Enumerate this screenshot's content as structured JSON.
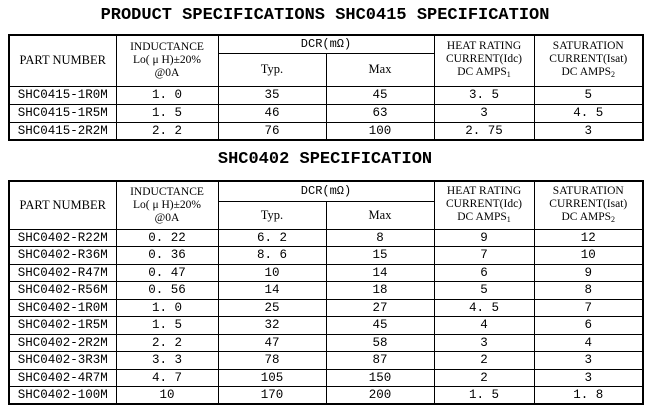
{
  "titles": {
    "main": "PRODUCT SPECIFICATIONS SHC0415 SPECIFICATION",
    "second": "SHC0402 SPECIFICATION"
  },
  "header": {
    "part_number": "PART NUMBER",
    "inductance": [
      "INDUCTANCE",
      "Lo( μ H)±20%",
      "@0A"
    ],
    "dcr": "DCR(mΩ)",
    "typ": "Typ.",
    "max": "Max",
    "heat_rating": [
      "HEAT RATING",
      "CURRENT(Idc)",
      "DC AMPS"
    ],
    "heat_sub": "1",
    "saturation": [
      "SATURATION",
      "CURRENT(Isat)",
      "DC AMPS"
    ],
    "saturation_sub": "2"
  },
  "shc0415_table": {
    "rows": [
      [
        "SHC0415-1R0M",
        "1. 0",
        "35",
        "45",
        "3. 5",
        "5"
      ],
      [
        "SHC0415-1R5M",
        "1. 5",
        "46",
        "63",
        "3",
        "4. 5"
      ],
      [
        "SHC0415-2R2M",
        "2. 2",
        "76",
        "100",
        "2. 75",
        "3"
      ]
    ]
  },
  "shc0402_table": {
    "rows": [
      [
        "SHC0402-R22M",
        "0. 22",
        "6. 2",
        "8",
        "9",
        "12"
      ],
      [
        "SHC0402-R36M",
        "0. 36",
        "8. 6",
        "15",
        "7",
        "10"
      ],
      [
        "SHC0402-R47M",
        "0. 47",
        "10",
        "14",
        "6",
        "9"
      ],
      [
        "SHC0402-R56M",
        "0. 56",
        "14",
        "18",
        "5",
        "8"
      ],
      [
        "SHC0402-1R0M",
        "1. 0",
        "25",
        "27",
        "4. 5",
        "7"
      ],
      [
        "SHC0402-1R5M",
        "1. 5",
        "32",
        "45",
        "4",
        "6"
      ],
      [
        "SHC0402-2R2M",
        "2. 2",
        "47",
        "58",
        "3",
        "4"
      ],
      [
        "SHC0402-3R3M",
        "3. 3",
        "78",
        "87",
        "2",
        "3"
      ],
      [
        "SHC0402-4R7M",
        "4. 7",
        "105",
        "150",
        "2",
        "3"
      ],
      [
        "SHC0402-100M",
        "10",
        "170",
        "200",
        "1. 5",
        "1. 8"
      ]
    ]
  }
}
